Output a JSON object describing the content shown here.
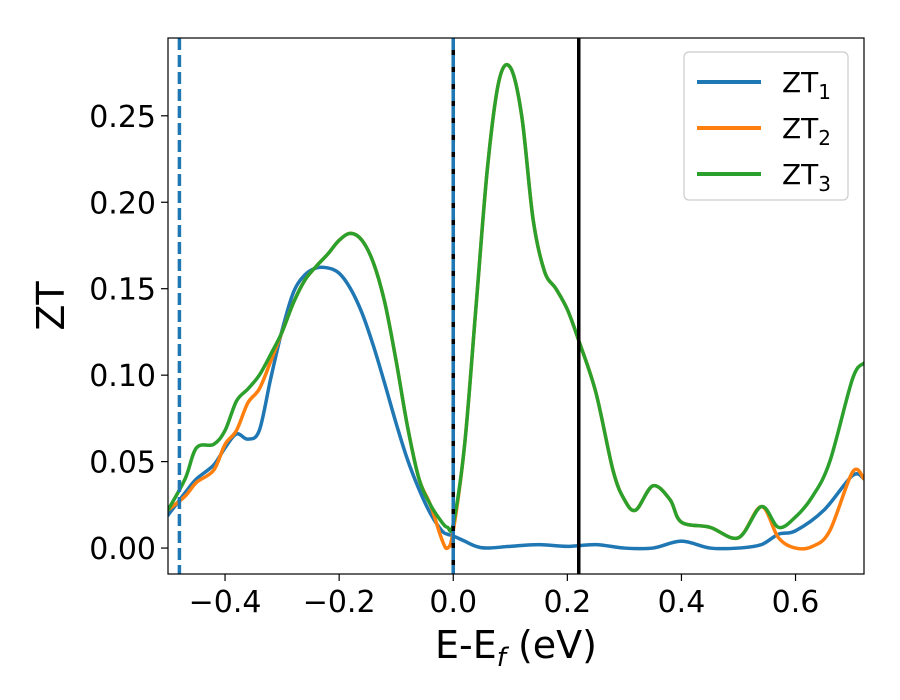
{
  "chart_data": {
    "type": "line",
    "xlabel": "E-E",
    "xlabel_sub": "f",
    "xlabel_unit": " (eV)",
    "ylabel": "ZT",
    "xlim": [
      -0.5,
      0.72
    ],
    "ylim": [
      -0.015,
      0.295
    ],
    "xticks": [
      -0.4,
      -0.2,
      0.0,
      0.2,
      0.4,
      0.6
    ],
    "xtick_labels": [
      "−0.4",
      "−0.2",
      "0.0",
      "0.2",
      "0.4",
      "0.6"
    ],
    "yticks": [
      0.0,
      0.05,
      0.1,
      0.15,
      0.2,
      0.25
    ],
    "ytick_labels": [
      "0.00",
      "0.05",
      "0.10",
      "0.15",
      "0.20",
      "0.25"
    ],
    "grid": false,
    "legend_position": "top-right",
    "colors": {
      "ZT1": "#1f77b4",
      "ZT2": "#ff7f0e",
      "ZT3": "#2ca02c",
      "ref_line": "#000000"
    },
    "series": [
      {
        "name": "ZT1",
        "label_main": "ZT",
        "label_sub": "1",
        "color": "#1f77b4",
        "x": [
          -0.5,
          -0.47,
          -0.45,
          -0.42,
          -0.4,
          -0.38,
          -0.36,
          -0.34,
          -0.32,
          -0.3,
          -0.28,
          -0.26,
          -0.24,
          -0.22,
          -0.2,
          -0.18,
          -0.16,
          -0.14,
          -0.12,
          -0.1,
          -0.08,
          -0.06,
          -0.04,
          -0.02,
          -0.01,
          0.0,
          0.02,
          0.04,
          0.06,
          0.1,
          0.15,
          0.2,
          0.25,
          0.3,
          0.35,
          0.4,
          0.45,
          0.5,
          0.54,
          0.57,
          0.6,
          0.65,
          0.7,
          0.72
        ],
        "y": [
          0.019,
          0.032,
          0.04,
          0.048,
          0.058,
          0.066,
          0.063,
          0.068,
          0.098,
          0.126,
          0.148,
          0.158,
          0.162,
          0.162,
          0.159,
          0.15,
          0.136,
          0.117,
          0.095,
          0.072,
          0.051,
          0.034,
          0.02,
          0.01,
          0.008,
          0.007,
          0.004,
          0.001,
          0.0,
          0.001,
          0.002,
          0.001,
          0.002,
          0.0,
          0.0,
          0.004,
          0.0,
          0.0,
          0.002,
          0.008,
          0.01,
          0.022,
          0.042,
          0.04
        ]
      },
      {
        "name": "ZT2",
        "label_main": "ZT",
        "label_sub": "2",
        "color": "#ff7f0e",
        "x": [
          -0.5,
          -0.47,
          -0.45,
          -0.42,
          -0.4,
          -0.38,
          -0.36,
          -0.34,
          -0.32,
          -0.3,
          -0.28,
          -0.26,
          -0.24,
          -0.22,
          -0.2,
          -0.18,
          -0.16,
          -0.14,
          -0.12,
          -0.1,
          -0.08,
          -0.06,
          -0.04,
          -0.02,
          -0.01,
          0.0,
          0.02,
          0.04,
          0.06,
          0.08,
          0.1,
          0.12,
          0.14,
          0.16,
          0.18,
          0.2,
          0.22,
          0.25,
          0.28,
          0.3,
          0.32,
          0.35,
          0.38,
          0.4,
          0.45,
          0.5,
          0.54,
          0.57,
          0.6,
          0.63,
          0.66,
          0.7,
          0.72
        ],
        "y": [
          0.022,
          0.03,
          0.038,
          0.045,
          0.06,
          0.068,
          0.084,
          0.092,
          0.108,
          0.125,
          0.142,
          0.155,
          0.163,
          0.17,
          0.178,
          0.182,
          0.178,
          0.165,
          0.142,
          0.108,
          0.07,
          0.04,
          0.025,
          0.005,
          0.0,
          0.01,
          0.06,
          0.14,
          0.22,
          0.27,
          0.278,
          0.25,
          0.19,
          0.16,
          0.15,
          0.138,
          0.12,
          0.09,
          0.045,
          0.028,
          0.022,
          0.036,
          0.028,
          0.015,
          0.012,
          0.006,
          0.024,
          0.006,
          0.0,
          0.001,
          0.01,
          0.044,
          0.04
        ]
      },
      {
        "name": "ZT3",
        "label_main": "ZT",
        "label_sub": "3",
        "color": "#2ca02c",
        "x": [
          -0.5,
          -0.47,
          -0.45,
          -0.42,
          -0.4,
          -0.38,
          -0.36,
          -0.34,
          -0.32,
          -0.3,
          -0.28,
          -0.26,
          -0.24,
          -0.22,
          -0.2,
          -0.18,
          -0.16,
          -0.14,
          -0.12,
          -0.1,
          -0.08,
          -0.06,
          -0.04,
          -0.02,
          -0.01,
          0.0,
          0.02,
          0.04,
          0.06,
          0.08,
          0.1,
          0.12,
          0.14,
          0.16,
          0.18,
          0.2,
          0.22,
          0.25,
          0.28,
          0.3,
          0.32,
          0.35,
          0.38,
          0.4,
          0.45,
          0.5,
          0.54,
          0.57,
          0.6,
          0.63,
          0.66,
          0.7,
          0.72
        ],
        "y": [
          0.022,
          0.04,
          0.058,
          0.06,
          0.068,
          0.085,
          0.092,
          0.1,
          0.112,
          0.125,
          0.142,
          0.155,
          0.163,
          0.17,
          0.178,
          0.182,
          0.178,
          0.165,
          0.142,
          0.108,
          0.07,
          0.04,
          0.025,
          0.015,
          0.012,
          0.014,
          0.06,
          0.14,
          0.22,
          0.27,
          0.278,
          0.25,
          0.19,
          0.16,
          0.15,
          0.138,
          0.12,
          0.09,
          0.045,
          0.028,
          0.022,
          0.036,
          0.028,
          0.015,
          0.012,
          0.006,
          0.024,
          0.012,
          0.018,
          0.03,
          0.05,
          0.098,
          0.107
        ]
      }
    ],
    "vlines": [
      {
        "x": -0.48,
        "color": "#1f77b4",
        "style": "dashed"
      },
      {
        "x": 0.0,
        "color": "#000000",
        "style": "solid"
      },
      {
        "x": 0.0,
        "color": "#1f77b4",
        "style": "dashed"
      },
      {
        "x": 0.22,
        "color": "#000000",
        "style": "solid"
      }
    ]
  }
}
